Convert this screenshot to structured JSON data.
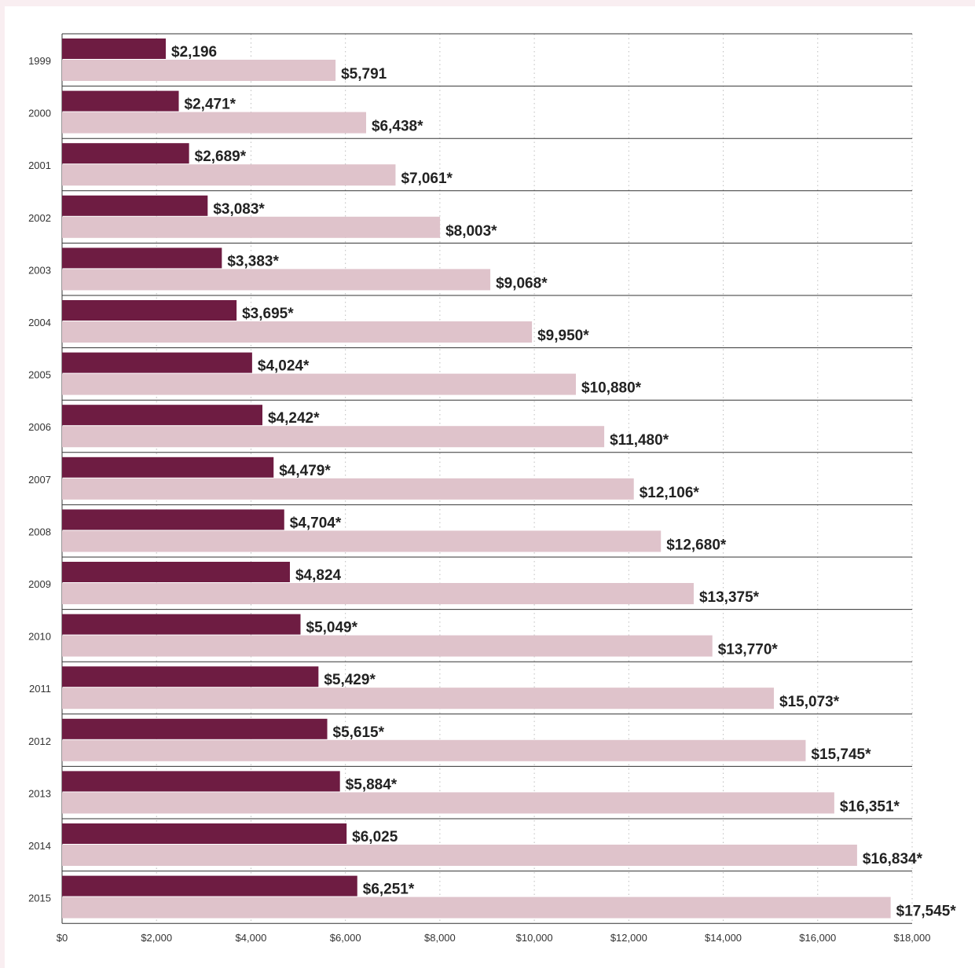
{
  "colors": {
    "series_1": "#6e1c42",
    "series_2": "#dfc3cb",
    "row_divider": "#333333",
    "grid": "#bdbdbd",
    "text": "#222222",
    "tick_text": "#333333",
    "frame": "#f9eef1"
  },
  "chart_data": {
    "type": "bar",
    "orientation": "horizontal",
    "title": "",
    "xlabel": "",
    "ylabel": "",
    "xlim": [
      0,
      18000
    ],
    "x_ticks": [
      "$0",
      "$2,000",
      "$4,000",
      "$6,000",
      "$8,000",
      "$10,000",
      "$12,000",
      "$14,000",
      "$16,000",
      "$18,000"
    ],
    "x_tick_values": [
      0,
      2000,
      4000,
      6000,
      8000,
      10000,
      12000,
      14000,
      16000,
      18000
    ],
    "grid": "vertical dotted",
    "legend": "none",
    "categories": [
      "1999",
      "2000",
      "2001",
      "2002",
      "2003",
      "2004",
      "2005",
      "2006",
      "2007",
      "2008",
      "2009",
      "2010",
      "2011",
      "2012",
      "2013",
      "2014",
      "2015"
    ],
    "series": [
      {
        "values": [
          2196,
          2471,
          2689,
          3083,
          3383,
          3695,
          4024,
          4242,
          4479,
          4704,
          4824,
          5049,
          5429,
          5615,
          5884,
          6025,
          6251
        ],
        "labels": [
          "$2,196",
          "$2,471*",
          "$2,689*",
          "$3,083*",
          "$3,383*",
          "$3,695*",
          "$4,024*",
          "$4,242*",
          "$4,479*",
          "$4,704*",
          "$4,824",
          "$5,049*",
          "$5,429*",
          "$5,615*",
          "$5,884*",
          "$6,025",
          "$6,251*"
        ]
      },
      {
        "values": [
          5791,
          6438,
          7061,
          8003,
          9068,
          9950,
          10880,
          11480,
          12106,
          12680,
          13375,
          13770,
          15073,
          15745,
          16351,
          16834,
          17545
        ],
        "labels": [
          "$5,791",
          "$6,438*",
          "$7,061*",
          "$8,003*",
          "$9,068*",
          "$9,950*",
          "$10,880*",
          "$11,480*",
          "$12,106*",
          "$12,680*",
          "$13,375*",
          "$13,770*",
          "$15,073*",
          "$15,745*",
          "$16,351*",
          "$16,834*",
          "$17,545*"
        ]
      }
    ]
  }
}
